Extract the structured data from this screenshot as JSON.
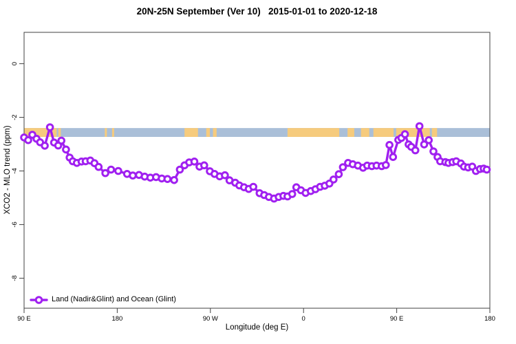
{
  "chart_data": {
    "type": "line",
    "title": "20N-25N September (Ver 10)   2015-01-01 to 2020-12-18",
    "xlabel": "Longitude (deg E)",
    "ylabel": "XCO2 - MLO trend (ppm)",
    "x_note": "longitude unwrapped eastward: 90-540 corresponds to 90E > 180 > 90W > 0 > 90E > 180",
    "xlim": [
      90,
      540
    ],
    "ylim": [
      -9.12,
      1.17
    ],
    "grid": false,
    "legend_position": "bottom-left",
    "x_ticks": [
      {
        "value": 90,
        "label": "90 E"
      },
      {
        "value": 180,
        "label": "180"
      },
      {
        "value": 270,
        "label": "90 W"
      },
      {
        "value": 360,
        "label": "0"
      },
      {
        "value": 450,
        "label": "90 E"
      },
      {
        "value": 540,
        "label": "180"
      }
    ],
    "y_ticks": [
      {
        "value": 0,
        "label": "0"
      },
      {
        "value": -2,
        "label": "-2"
      },
      {
        "value": -4,
        "label": "-4"
      },
      {
        "value": -6,
        "label": "-6"
      },
      {
        "value": -8,
        "label": "-8"
      }
    ],
    "series": [
      {
        "name": "Land (Nadir&Glint) and Ocean (Glint)",
        "color": "#A020F0",
        "marker": "open-circle",
        "x": [
          90,
          94,
          98,
          102,
          105.5,
          110,
          115,
          119,
          123,
          126,
          130.5,
          134,
          137,
          141,
          145.5,
          149.5,
          154,
          158,
          162,
          168.5,
          174,
          181,
          189.5,
          195,
          201,
          206.5,
          212,
          217.5,
          223,
          228.5,
          235,
          240.5,
          245,
          249.5,
          254.5,
          259.5,
          264,
          269.5,
          274,
          279,
          284,
          288.5,
          294,
          298,
          302.5,
          307,
          311.5,
          317.5,
          322,
          326.5,
          331.5,
          336,
          340.5,
          344.5,
          349,
          353,
          357.5,
          362,
          367,
          371.5,
          376,
          380.5,
          385,
          389,
          394,
          398,
          403,
          407.5,
          412.5,
          417.5,
          421.5,
          426,
          430.5,
          435.5,
          439.5,
          443,
          446.5,
          451.5,
          454.5,
          458,
          461.5,
          464,
          468,
          472,
          476.5,
          481,
          485.5,
          489.5,
          492,
          497,
          500,
          504,
          507.5,
          512,
          515,
          519,
          523,
          526.5,
          530.5,
          534,
          537
        ],
        "y": [
          -2.75,
          -2.85,
          -2.65,
          -2.8,
          -2.93,
          -3.06,
          -2.37,
          -2.94,
          -3.05,
          -2.87,
          -3.2,
          -3.5,
          -3.64,
          -3.7,
          -3.65,
          -3.64,
          -3.61,
          -3.71,
          -3.85,
          -4.08,
          -3.95,
          -4.0,
          -4.11,
          -4.17,
          -4.15,
          -4.21,
          -4.25,
          -4.23,
          -4.28,
          -4.3,
          -4.34,
          -3.95,
          -3.79,
          -3.68,
          -3.65,
          -3.84,
          -3.79,
          -4.01,
          -4.11,
          -4.2,
          -4.16,
          -4.35,
          -4.44,
          -4.54,
          -4.61,
          -4.67,
          -4.59,
          -4.83,
          -4.9,
          -4.97,
          -5.03,
          -4.97,
          -4.93,
          -4.95,
          -4.86,
          -4.61,
          -4.72,
          -4.82,
          -4.75,
          -4.68,
          -4.59,
          -4.55,
          -4.47,
          -4.32,
          -4.12,
          -3.86,
          -3.7,
          -3.75,
          -3.8,
          -3.88,
          -3.8,
          -3.82,
          -3.8,
          -3.82,
          -3.78,
          -3.03,
          -3.48,
          -2.84,
          -2.77,
          -2.63,
          -3.01,
          -3.1,
          -3.23,
          -2.33,
          -3.01,
          -2.85,
          -3.27,
          -3.48,
          -3.64,
          -3.67,
          -3.7,
          -3.67,
          -3.64,
          -3.72,
          -3.84,
          -3.87,
          -3.84,
          -4.0,
          -3.93,
          -3.91,
          -3.95
        ]
      }
    ],
    "map_strip": {
      "description": "land/ocean strip for the 20N-25N latitude band drawn across the plot",
      "y_top_value": -2.4,
      "y_bottom_value": -2.73,
      "ocean_color": "#AABFD8",
      "land_color": "#F6CB7D",
      "land_segments": [
        [
          90,
          121.5
        ],
        [
          123,
          125.5
        ],
        [
          168,
          170
        ],
        [
          175,
          177
        ],
        [
          245,
          258
        ],
        [
          266,
          269.5
        ],
        [
          272.5,
          276
        ],
        [
          344.5,
          394.5
        ],
        [
          402.5,
          409
        ],
        [
          415.5,
          423.5
        ],
        [
          427.5,
          447
        ],
        [
          449.5,
          482
        ],
        [
          484,
          489
        ]
      ]
    },
    "legend": {
      "label": "Land (Nadir&Glint) and Ocean (Glint)"
    },
    "colors": {
      "axis": "#404040",
      "text": "#000000",
      "background": "#FFFFFF"
    }
  }
}
